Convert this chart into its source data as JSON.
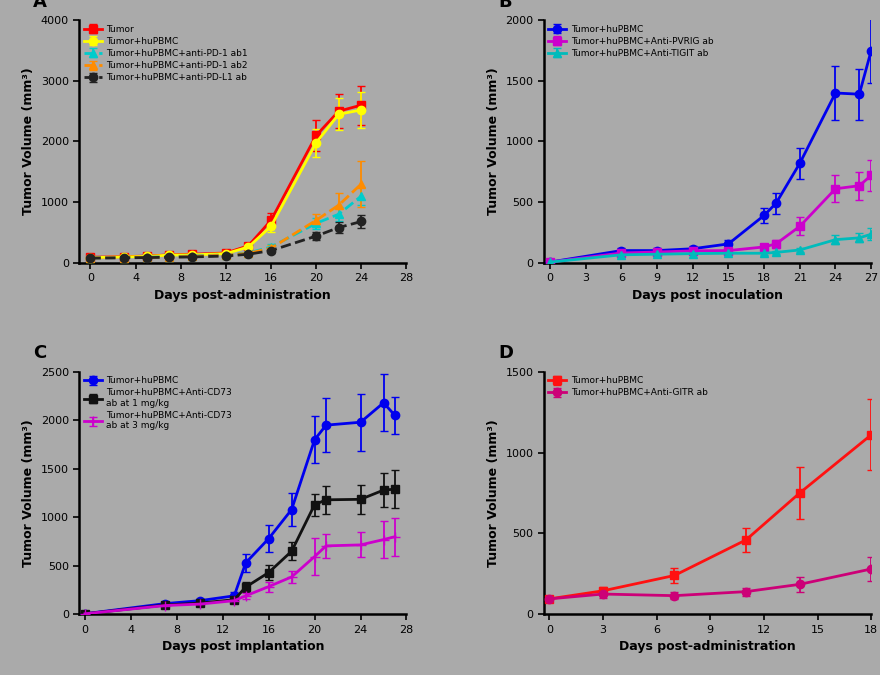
{
  "bg_color": "#AAAAAA",
  "panel_bg": "#AAAAAA",
  "A": {
    "label": "A",
    "xlabel": "Days post-administration",
    "ylabel": "Tumor Volume (mm³)",
    "xlim": [
      -1,
      28
    ],
    "ylim": [
      0,
      4000
    ],
    "xticks": [
      0,
      4,
      8,
      12,
      16,
      20,
      24,
      28
    ],
    "yticks": [
      0,
      1000,
      2000,
      3000,
      4000
    ],
    "series": [
      {
        "label": "Tumor",
        "color": "#FF0000",
        "linestyle": "-",
        "marker": "s",
        "x": [
          0,
          3,
          5,
          7,
          9,
          12,
          14,
          16,
          20,
          22,
          24
        ],
        "y": [
          90,
          100,
          110,
          130,
          140,
          160,
          280,
          700,
          2100,
          2500,
          2600
        ],
        "yerr": [
          15,
          18,
          20,
          22,
          25,
          30,
          50,
          120,
          250,
          280,
          320
        ]
      },
      {
        "label": "Tumor+huPBMC",
        "color": "#FFFF00",
        "linestyle": "-",
        "marker": "o",
        "x": [
          0,
          3,
          5,
          7,
          9,
          12,
          14,
          16,
          20,
          22,
          24
        ],
        "y": [
          85,
          95,
          105,
          125,
          130,
          150,
          260,
          600,
          1980,
          2450,
          2520
        ],
        "yerr": [
          12,
          15,
          18,
          20,
          22,
          28,
          45,
          100,
          230,
          260,
          290
        ]
      },
      {
        "label": "Tumor+huPBMC+anti-PD-1 ab1",
        "color": "#00CCCC",
        "linestyle": "--",
        "marker": "^",
        "x": [
          0,
          3,
          5,
          7,
          9,
          12,
          14,
          16,
          20,
          22,
          24
        ],
        "y": [
          80,
          85,
          90,
          100,
          110,
          130,
          160,
          260,
          650,
          800,
          1100
        ],
        "yerr": [
          10,
          12,
          12,
          15,
          18,
          22,
          30,
          50,
          90,
          120,
          150
        ]
      },
      {
        "label": "Tumor+huPBMC+anti-PD-1 ab2",
        "color": "#FF8C00",
        "linestyle": "--",
        "marker": "^",
        "x": [
          0,
          3,
          5,
          7,
          9,
          12,
          14,
          16,
          20,
          22,
          24
        ],
        "y": [
          80,
          85,
          88,
          95,
          105,
          125,
          155,
          240,
          700,
          950,
          1300
        ],
        "yerr": [
          10,
          12,
          12,
          14,
          16,
          20,
          28,
          45,
          100,
          200,
          380
        ]
      },
      {
        "label": "Tumor+huPBMC+anti-PD-L1 ab",
        "color": "#222222",
        "linestyle": "--",
        "marker": "o",
        "x": [
          0,
          3,
          5,
          7,
          9,
          12,
          14,
          16,
          20,
          22,
          24
        ],
        "y": [
          75,
          80,
          85,
          90,
          95,
          110,
          140,
          200,
          440,
          580,
          680
        ],
        "yerr": [
          10,
          12,
          12,
          14,
          15,
          18,
          25,
          40,
          65,
          90,
          110
        ]
      }
    ]
  },
  "B": {
    "label": "B",
    "xlabel": "Days post inoculation",
    "ylabel": "Tumor Volume (mm³)",
    "xlim": [
      -0.5,
      27
    ],
    "ylim": [
      0,
      2000
    ],
    "xticks": [
      0,
      3,
      6,
      9,
      12,
      15,
      18,
      21,
      24,
      27
    ],
    "yticks": [
      0,
      500,
      1000,
      1500,
      2000
    ],
    "series": [
      {
        "label": "Tumor+huPBMC",
        "color": "#0000EE",
        "linestyle": "-",
        "marker": "o",
        "x": [
          0,
          6,
          9,
          12,
          15,
          18,
          19,
          21,
          24,
          26,
          27
        ],
        "y": [
          5,
          100,
          100,
          115,
          155,
          390,
          490,
          820,
          1400,
          1390,
          1750
        ],
        "yerr": [
          3,
          18,
          18,
          22,
          32,
          65,
          85,
          130,
          220,
          210,
          270
        ]
      },
      {
        "label": "Tumor+huPBMC+Anti-PVRIG ab",
        "color": "#CC00CC",
        "linestyle": "-",
        "marker": "s",
        "x": [
          0,
          6,
          9,
          12,
          15,
          18,
          19,
          21,
          24,
          26,
          27
        ],
        "y": [
          5,
          80,
          88,
          98,
          100,
          130,
          155,
          300,
          610,
          635,
          720
        ],
        "yerr": [
          3,
          14,
          14,
          18,
          18,
          28,
          35,
          75,
          110,
          115,
          125
        ]
      },
      {
        "label": "Tumor+huPBMC+Anti-TIGIT ab",
        "color": "#00BBBB",
        "linestyle": "-",
        "marker": "^",
        "x": [
          0,
          6,
          9,
          12,
          15,
          18,
          19,
          21,
          24,
          26,
          27
        ],
        "y": [
          5,
          65,
          70,
          75,
          78,
          78,
          85,
          105,
          190,
          205,
          235
        ],
        "yerr": [
          3,
          10,
          10,
          12,
          12,
          14,
          14,
          20,
          38,
          38,
          48
        ]
      }
    ]
  },
  "C": {
    "label": "C",
    "xlabel": "Days post implantation",
    "ylabel": "Tumor Volume (mm³)",
    "xlim": [
      -0.5,
      28
    ],
    "ylim": [
      0,
      2500
    ],
    "xticks": [
      0,
      4,
      8,
      12,
      16,
      20,
      24,
      28
    ],
    "yticks": [
      0,
      500,
      1000,
      1500,
      2000,
      2500
    ],
    "series": [
      {
        "label": "Tumor+huPBMC",
        "color": "#0000EE",
        "linestyle": "-",
        "marker": "o",
        "x": [
          0,
          7,
          10,
          13,
          14,
          16,
          18,
          20,
          21,
          24,
          26,
          27
        ],
        "y": [
          5,
          110,
          140,
          190,
          530,
          780,
          1080,
          1800,
          1950,
          1980,
          2180,
          2050
        ],
        "yerr": [
          3,
          18,
          22,
          35,
          95,
          140,
          175,
          240,
          280,
          295,
          295,
          195
        ]
      },
      {
        "label": "Tumor+huPBMC+Anti-CD73\nab at 1 mg/kg",
        "color": "#111111",
        "linestyle": "-",
        "marker": "s",
        "x": [
          0,
          7,
          10,
          13,
          14,
          16,
          18,
          20,
          21,
          24,
          26,
          27
        ],
        "y": [
          5,
          95,
          115,
          150,
          280,
          430,
          650,
          1130,
          1180,
          1185,
          1280,
          1290
        ],
        "yerr": [
          3,
          14,
          18,
          28,
          48,
          75,
          95,
          115,
          145,
          148,
          175,
          195
        ]
      },
      {
        "label": "Tumor+huPBMC+Anti-CD73\nab at 3 mg/kg",
        "color": "#CC00CC",
        "linestyle": "-",
        "marker": "+",
        "x": [
          0,
          7,
          10,
          13,
          14,
          16,
          18,
          20,
          21,
          24,
          26,
          27
        ],
        "y": [
          5,
          90,
          105,
          140,
          190,
          285,
          385,
          595,
          705,
          715,
          770,
          800
        ],
        "yerr": [
          3,
          14,
          16,
          24,
          33,
          52,
          66,
          195,
          125,
          128,
          195,
          195
        ]
      }
    ]
  },
  "D": {
    "label": "D",
    "xlabel": "Days post-administration",
    "ylabel": "Tumor Volume (mm³)",
    "xlim": [
      -0.3,
      18
    ],
    "ylim": [
      0,
      1500
    ],
    "xticks": [
      0,
      3,
      6,
      9,
      12,
      15,
      18
    ],
    "yticks": [
      0,
      500,
      1000,
      1500
    ],
    "series": [
      {
        "label": "Tumor+huPBMC",
        "color": "#FF1111",
        "linestyle": "-",
        "marker": "s",
        "x": [
          0,
          3,
          7,
          11,
          14,
          18
        ],
        "y": [
          95,
          145,
          240,
          460,
          750,
          1110
        ],
        "yerr": [
          18,
          25,
          45,
          75,
          160,
          220
        ]
      },
      {
        "label": "Tumor+huPBMC+Anti-GITR ab",
        "color": "#CC0077",
        "linestyle": "-",
        "marker": "o",
        "x": [
          0,
          3,
          7,
          11,
          14,
          18
        ],
        "y": [
          95,
          125,
          115,
          140,
          185,
          280
        ],
        "yerr": [
          18,
          22,
          20,
          25,
          45,
          75
        ]
      }
    ]
  }
}
